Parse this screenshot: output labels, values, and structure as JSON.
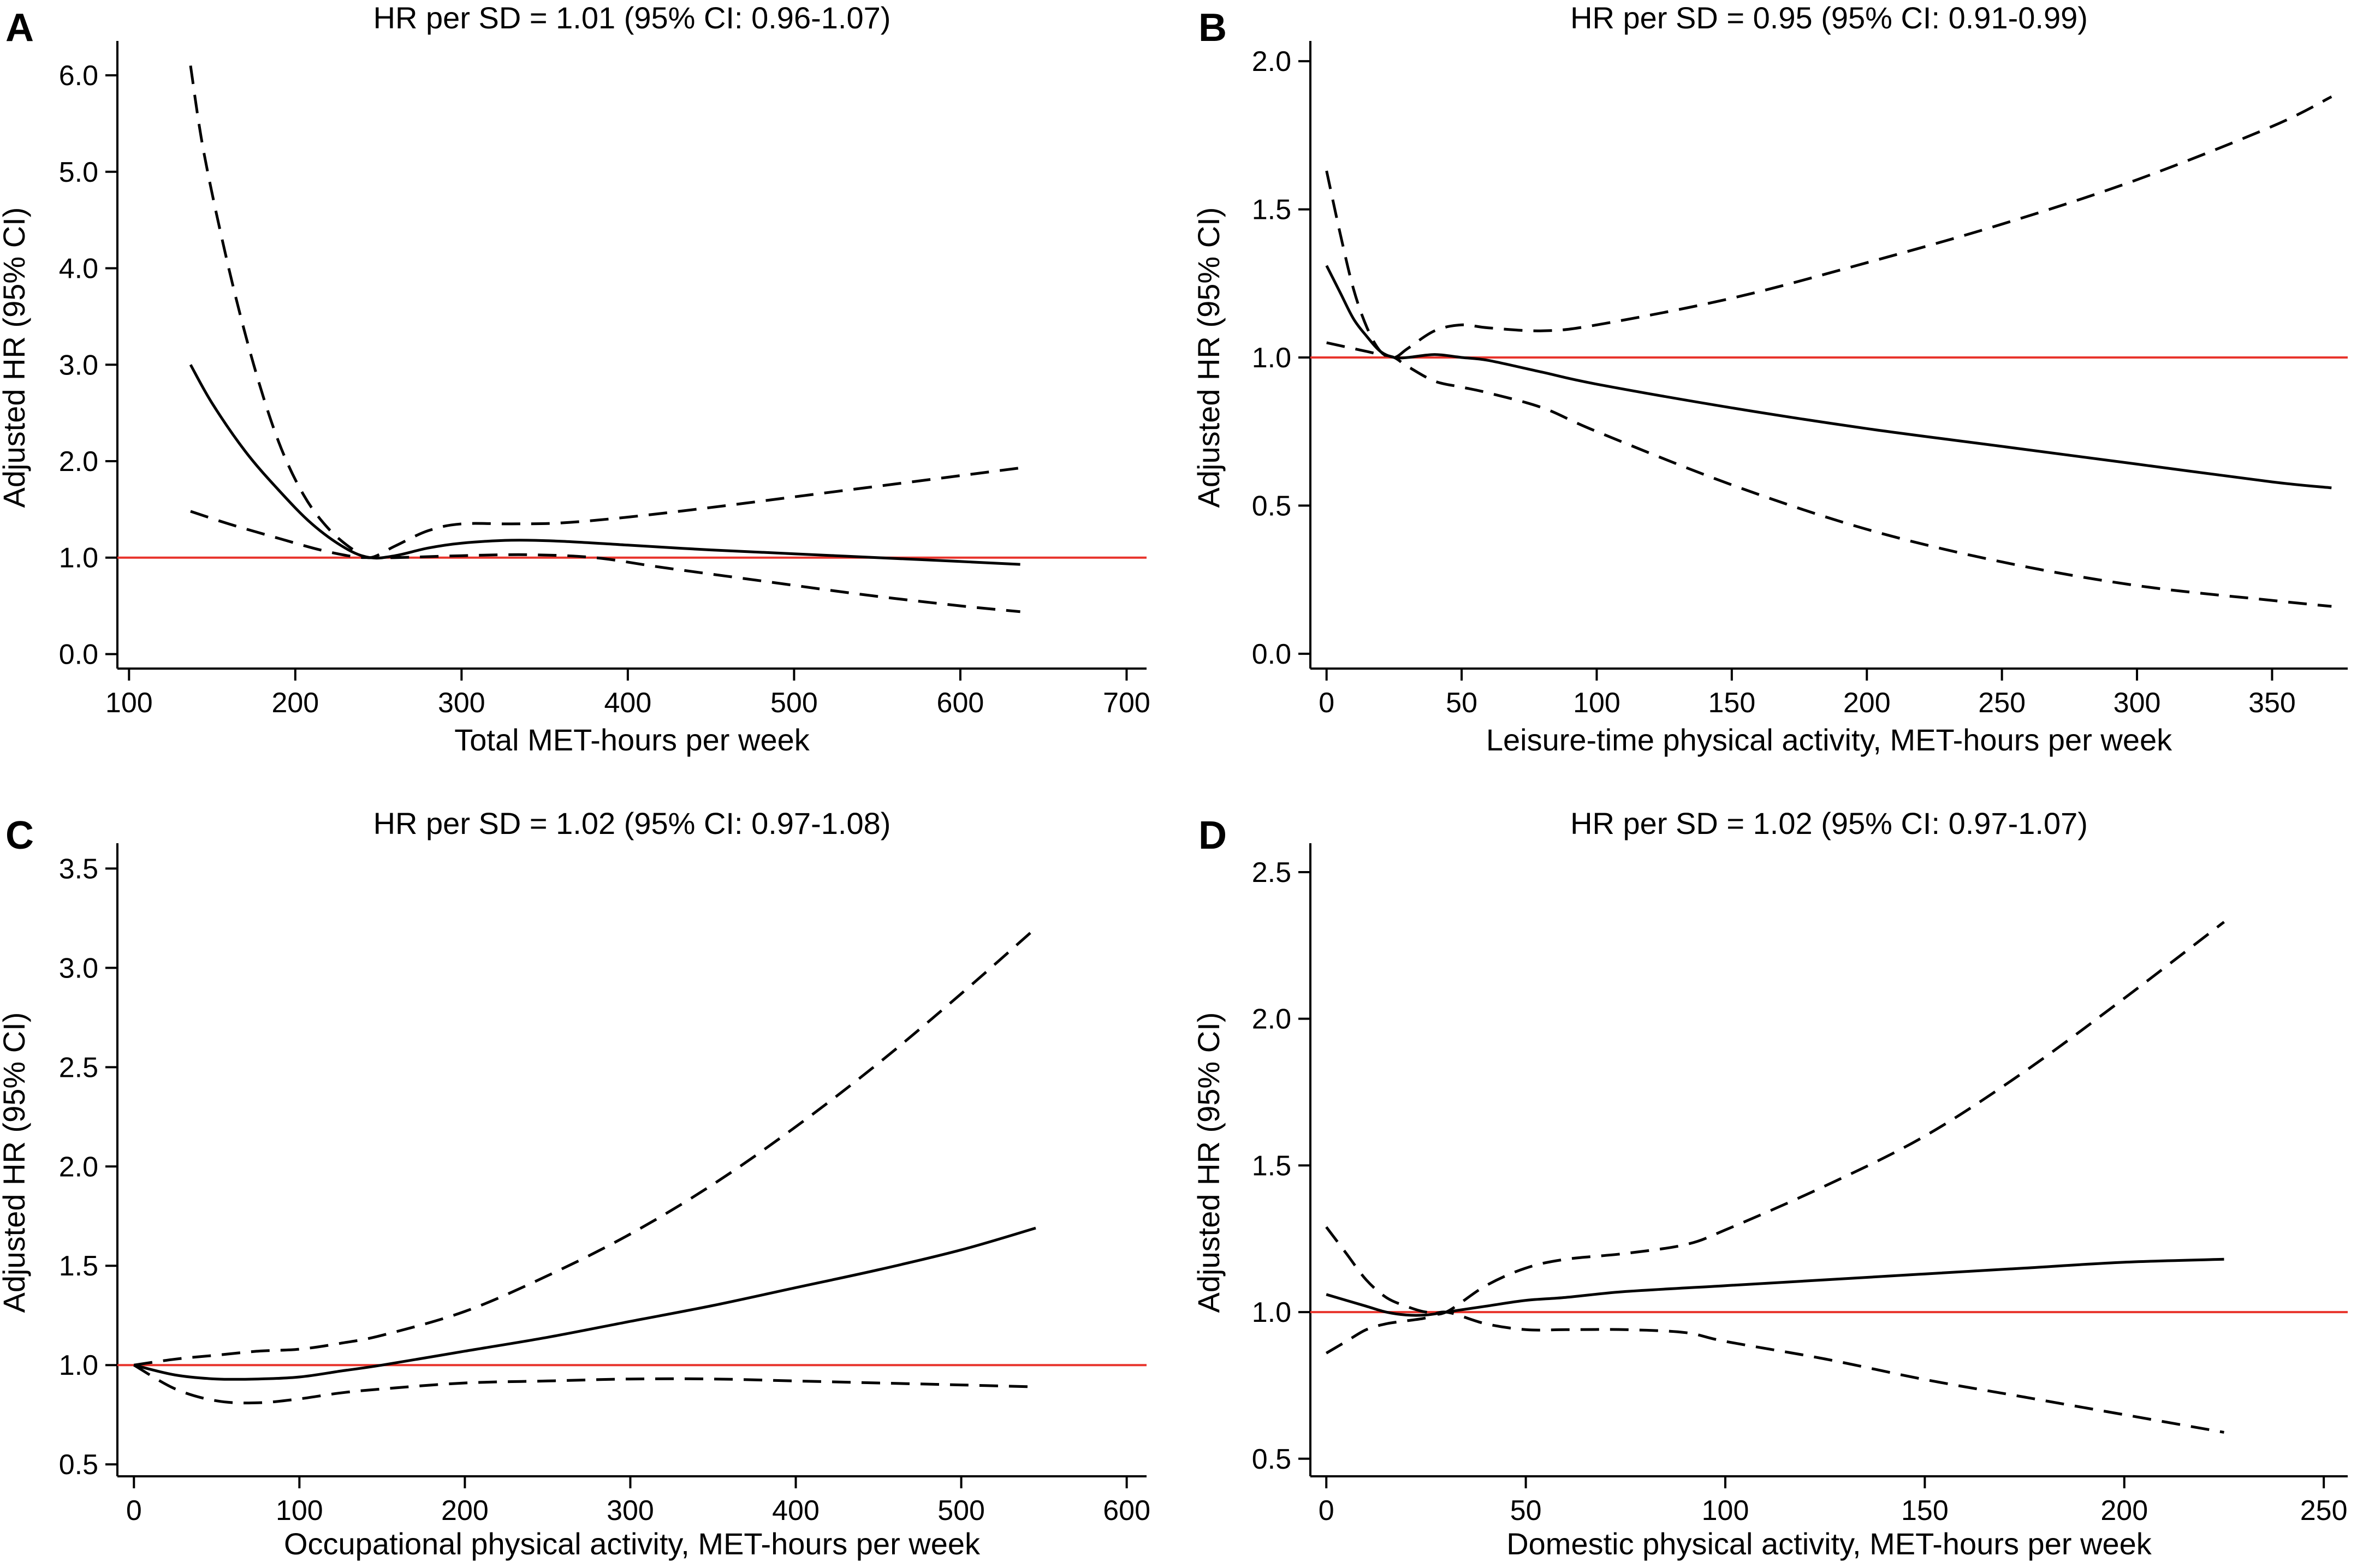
{
  "figure": {
    "colors": {
      "estimate": "#000000",
      "ci": "#000000",
      "reference": "#e8342c"
    },
    "reference_line_value": 1.0,
    "line_styles": {
      "estimate": "solid",
      "ci": "dashed",
      "reference": "solid"
    }
  },
  "chart_data": [
    {
      "panel": "A",
      "type": "line",
      "title": "HR per SD = 1.01 (95% CI: 0.96-1.07)",
      "xlabel": "Total MET-hours per week",
      "ylabel": "Adjusted HR (95% CI)",
      "xlim": [
        93,
        712
      ],
      "ylim": [
        -0.15,
        6.3
      ],
      "xticks": [
        100,
        200,
        300,
        400,
        500,
        600,
        700
      ],
      "xtick_labels": [
        "100",
        "200",
        "300",
        "400",
        "500",
        "600",
        "700"
      ],
      "yticks": [
        0,
        1,
        2,
        3,
        4,
        5,
        6
      ],
      "ytick_labels": [
        "0.0",
        "1.0",
        "2.0",
        "3.0",
        "4.0",
        "5.0",
        "6.0"
      ],
      "series": [
        {
          "name": "HR",
          "style": "solid",
          "x": [
            137,
            150,
            170,
            190,
            210,
            230,
            245,
            260,
            280,
            300,
            330,
            360,
            400,
            450,
            500,
            550,
            600,
            636
          ],
          "y": [
            3.0,
            2.6,
            2.1,
            1.7,
            1.35,
            1.1,
            1.0,
            1.02,
            1.1,
            1.15,
            1.18,
            1.17,
            1.13,
            1.08,
            1.04,
            1.0,
            0.96,
            0.93
          ]
        },
        {
          "name": "Upper 95% CI",
          "style": "dashed",
          "x": [
            137,
            145,
            160,
            175,
            190,
            205,
            220,
            235,
            245,
            260,
            280,
            300,
            330,
            360,
            400,
            450,
            500,
            550,
            600,
            636
          ],
          "y": [
            6.1,
            5.2,
            4.0,
            3.0,
            2.2,
            1.65,
            1.3,
            1.08,
            1.0,
            1.12,
            1.28,
            1.35,
            1.35,
            1.36,
            1.42,
            1.52,
            1.63,
            1.74,
            1.85,
            1.93
          ]
        },
        {
          "name": "Lower 95% CI",
          "style": "dashed",
          "x": [
            137,
            160,
            190,
            215,
            235,
            245,
            260,
            300,
            340,
            380,
            420,
            480,
            540,
            600,
            636
          ],
          "y": [
            1.48,
            1.35,
            1.2,
            1.08,
            1.01,
            1.0,
            1.0,
            1.02,
            1.03,
            1.0,
            0.9,
            0.76,
            0.62,
            0.5,
            0.44
          ]
        }
      ]
    },
    {
      "panel": "B",
      "type": "line",
      "title": "HR per SD = 0.95 (95% CI: 0.91-0.99)",
      "xlabel": "Leisure-time physical activity, MET-hours per week",
      "ylabel": "Adjusted HR (95% CI)",
      "xlim": [
        -6,
        378
      ],
      "ylim": [
        -0.05,
        2.05
      ],
      "xticks": [
        0,
        50,
        100,
        150,
        200,
        250,
        300,
        350
      ],
      "xtick_labels": [
        "0",
        "50",
        "100",
        "150",
        "200",
        "250",
        "300",
        "350"
      ],
      "yticks": [
        0,
        0.5,
        1.0,
        1.5,
        2.0
      ],
      "ytick_labels": [
        "0.0",
        "0.5",
        "1.0",
        "1.5",
        "2.0"
      ],
      "series": [
        {
          "name": "HR",
          "style": "solid",
          "x": [
            0,
            5,
            10,
            15,
            20,
            25,
            30,
            40,
            50,
            60,
            80,
            100,
            150,
            200,
            250,
            300,
            350,
            372
          ],
          "y": [
            1.31,
            1.22,
            1.13,
            1.07,
            1.02,
            1.0,
            1.0,
            1.01,
            1.0,
            0.99,
            0.95,
            0.91,
            0.83,
            0.76,
            0.7,
            0.64,
            0.58,
            0.56
          ]
        },
        {
          "name": "Upper 95% CI",
          "style": "dashed",
          "x": [
            0,
            5,
            10,
            15,
            20,
            25,
            30,
            40,
            50,
            60,
            80,
            100,
            150,
            200,
            250,
            300,
            350,
            372
          ],
          "y": [
            1.63,
            1.42,
            1.23,
            1.1,
            1.02,
            1.0,
            1.03,
            1.09,
            1.11,
            1.1,
            1.09,
            1.11,
            1.2,
            1.32,
            1.45,
            1.6,
            1.78,
            1.88
          ]
        },
        {
          "name": "Lower 95% CI",
          "style": "dashed",
          "x": [
            0,
            5,
            10,
            15,
            20,
            25,
            30,
            40,
            50,
            60,
            80,
            100,
            150,
            200,
            250,
            300,
            350,
            372
          ],
          "y": [
            1.05,
            1.04,
            1.03,
            1.02,
            1.01,
            1.0,
            0.97,
            0.92,
            0.9,
            0.88,
            0.83,
            0.75,
            0.57,
            0.42,
            0.31,
            0.23,
            0.18,
            0.16
          ]
        }
      ]
    },
    {
      "panel": "C",
      "type": "line",
      "title": "HR per SD = 1.02 (95% CI: 0.97-1.08)",
      "xlabel": "Occupational physical activity, MET-hours per week",
      "ylabel": "Adjusted HR (95% CI)",
      "xlim": [
        -10,
        612
      ],
      "ylim": [
        0.44,
        3.6
      ],
      "xticks": [
        0,
        100,
        200,
        300,
        400,
        500,
        600
      ],
      "xtick_labels": [
        "0",
        "100",
        "200",
        "300",
        "400",
        "500",
        "600"
      ],
      "yticks": [
        0.5,
        1.0,
        1.5,
        2.0,
        2.5,
        3.0,
        3.5
      ],
      "ytick_labels": [
        "0.5",
        "1.0",
        "1.5",
        "2.0",
        "2.5",
        "3.0",
        "3.5"
      ],
      "series": [
        {
          "name": "HR",
          "style": "solid",
          "x": [
            0,
            25,
            50,
            75,
            100,
            125,
            150,
            200,
            250,
            300,
            350,
            400,
            450,
            500,
            545
          ],
          "y": [
            1.0,
            0.95,
            0.93,
            0.93,
            0.94,
            0.97,
            1.0,
            1.07,
            1.14,
            1.22,
            1.3,
            1.39,
            1.48,
            1.58,
            1.69
          ]
        },
        {
          "name": "Upper 95% CI",
          "style": "dashed",
          "x": [
            0,
            25,
            50,
            75,
            100,
            125,
            150,
            200,
            250,
            300,
            350,
            400,
            450,
            500,
            545
          ],
          "y": [
            1.0,
            1.03,
            1.05,
            1.07,
            1.08,
            1.11,
            1.15,
            1.27,
            1.45,
            1.66,
            1.91,
            2.2,
            2.52,
            2.87,
            3.2
          ]
        },
        {
          "name": "Lower 95% CI",
          "style": "dashed",
          "x": [
            0,
            25,
            50,
            75,
            100,
            125,
            150,
            200,
            250,
            300,
            350,
            400,
            450,
            500,
            545
          ],
          "y": [
            1.0,
            0.88,
            0.82,
            0.81,
            0.83,
            0.86,
            0.88,
            0.91,
            0.92,
            0.93,
            0.93,
            0.92,
            0.91,
            0.9,
            0.89
          ]
        }
      ]
    },
    {
      "panel": "D",
      "type": "line",
      "title": "HR per SD = 1.02 (95% CI: 0.97-1.07)",
      "xlabel": "Domestic physical activity, MET-hours per week",
      "ylabel": "Adjusted HR (95% CI)",
      "xlim": [
        -4,
        256
      ],
      "ylim": [
        0.44,
        2.58
      ],
      "xticks": [
        0,
        50,
        100,
        150,
        200,
        250
      ],
      "xtick_labels": [
        "0",
        "50",
        "100",
        "150",
        "200",
        "250"
      ],
      "yticks": [
        0.5,
        1.0,
        1.5,
        2.0,
        2.5
      ],
      "ytick_labels": [
        "0.5",
        "1.0",
        "1.5",
        "2.0",
        "2.5"
      ],
      "series": [
        {
          "name": "HR",
          "style": "solid",
          "x": [
            0,
            5,
            10,
            15,
            20,
            25,
            30,
            40,
            50,
            60,
            75,
            100,
            125,
            150,
            175,
            200,
            225
          ],
          "y": [
            1.06,
            1.04,
            1.02,
            1.0,
            0.99,
            0.99,
            1.0,
            1.02,
            1.04,
            1.05,
            1.07,
            1.09,
            1.11,
            1.13,
            1.15,
            1.17,
            1.18
          ]
        },
        {
          "name": "Upper 95% CI",
          "style": "dashed",
          "x": [
            0,
            5,
            10,
            15,
            20,
            25,
            30,
            40,
            50,
            60,
            75,
            90,
            100,
            125,
            150,
            175,
            200,
            225
          ],
          "y": [
            1.29,
            1.2,
            1.11,
            1.05,
            1.02,
            1.0,
            1.0,
            1.09,
            1.15,
            1.18,
            1.2,
            1.23,
            1.28,
            1.43,
            1.6,
            1.82,
            2.07,
            2.33
          ]
        },
        {
          "name": "Lower 95% CI",
          "style": "dashed",
          "x": [
            0,
            5,
            10,
            15,
            20,
            25,
            30,
            40,
            50,
            60,
            75,
            90,
            100,
            125,
            150,
            175,
            200,
            225
          ],
          "y": [
            0.86,
            0.9,
            0.94,
            0.96,
            0.97,
            0.98,
            1.0,
            0.96,
            0.94,
            0.94,
            0.94,
            0.93,
            0.9,
            0.84,
            0.77,
            0.71,
            0.65,
            0.59
          ]
        }
      ]
    }
  ]
}
